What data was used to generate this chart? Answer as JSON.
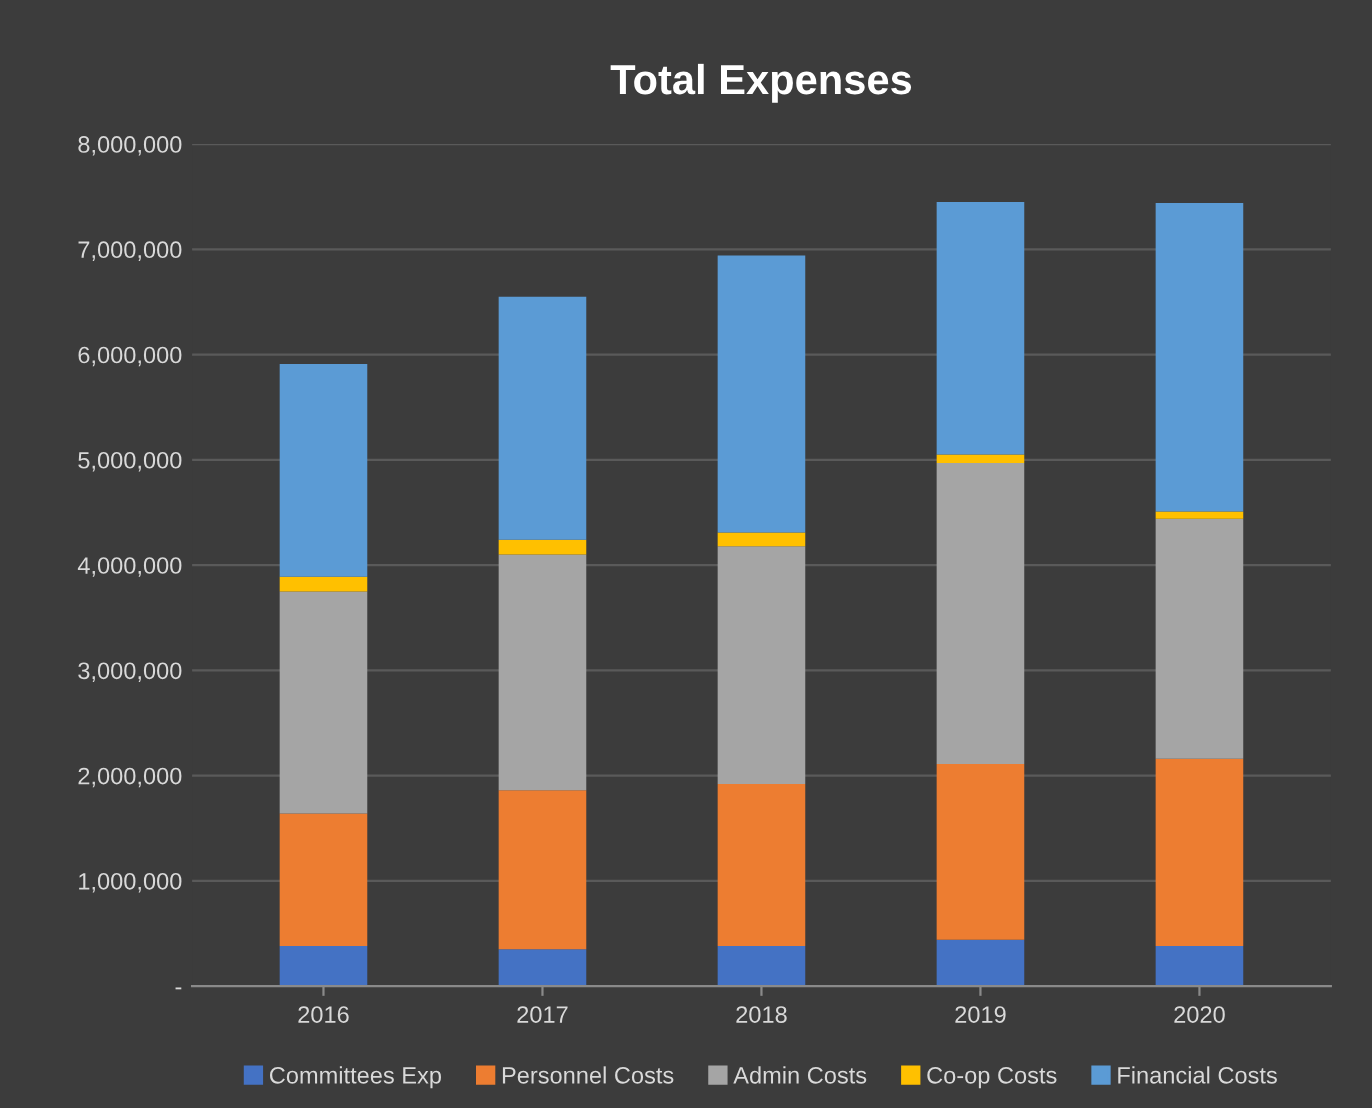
{
  "chart_data": {
    "type": "bar",
    "stacked": true,
    "title": "Total Expenses",
    "categories": [
      "2016",
      "2017",
      "2018",
      "2019",
      "2020"
    ],
    "series": [
      {
        "name": "Committees Exp",
        "color": "#4472c4",
        "values": [
          380000,
          350000,
          380000,
          440000,
          380000
        ]
      },
      {
        "name": "Personnel Costs",
        "color": "#ed7d31",
        "values": [
          1260000,
          1510000,
          1540000,
          1670000,
          1780000
        ]
      },
      {
        "name": "Admin Costs",
        "color": "#a5a5a5",
        "values": [
          2110000,
          2240000,
          2260000,
          2860000,
          2280000
        ]
      },
      {
        "name": "Co-op Costs",
        "color": "#ffc000",
        "values": [
          140000,
          140000,
          130000,
          80000,
          70000
        ]
      },
      {
        "name": "Financial Costs",
        "color": "#5b9bd5",
        "values": [
          2020000,
          2310000,
          2630000,
          2400000,
          2930000
        ]
      }
    ],
    "ylim": [
      0,
      8000000
    ],
    "yticks": [
      {
        "value": 0,
        "label": "-"
      },
      {
        "value": 1000000,
        "label": "1,000,000"
      },
      {
        "value": 2000000,
        "label": "2,000,000"
      },
      {
        "value": 3000000,
        "label": "3,000,000"
      },
      {
        "value": 4000000,
        "label": "4,000,000"
      },
      {
        "value": 5000000,
        "label": "5,000,000"
      },
      {
        "value": 6000000,
        "label": "6,000,000"
      },
      {
        "value": 7000000,
        "label": "7,000,000"
      },
      {
        "value": 8000000,
        "label": "8,000,000"
      }
    ],
    "grid": "y",
    "legend": "bottom"
  }
}
